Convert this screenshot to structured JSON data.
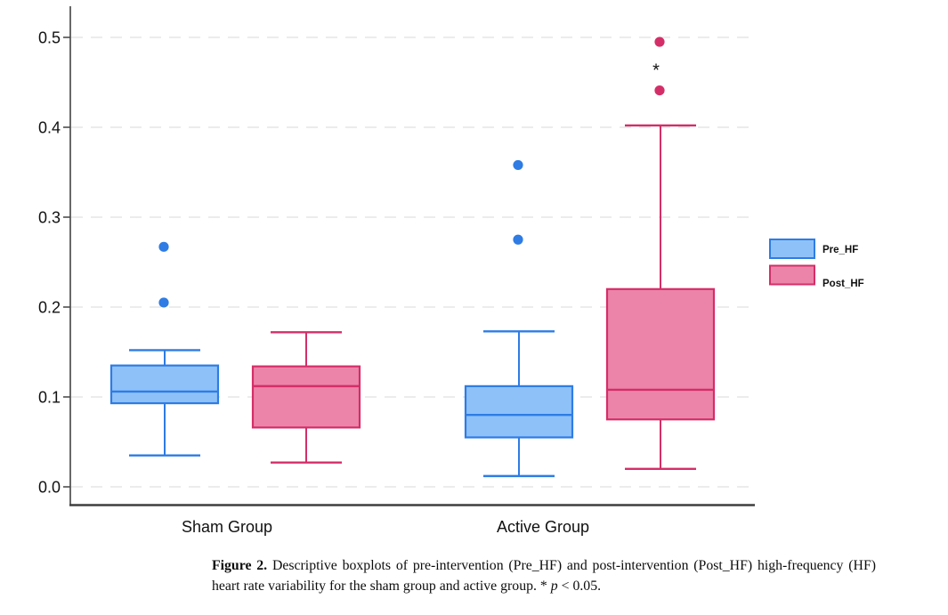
{
  "chart_data": {
    "type": "boxplot",
    "title": "",
    "xlabel": "",
    "ylabel": "",
    "groups": [
      "Sham Group",
      "Active Group"
    ],
    "y_axis": {
      "ticks": [
        "0.0",
        "0.1",
        "0.2",
        "0.3",
        "0.4",
        "0.5"
      ],
      "range": [
        -0.021,
        0.535
      ],
      "grid": "dashed-horizontal"
    },
    "legend_position": "right-middle",
    "colors": {
      "axis": "#4d4d4d",
      "bottom_axis": "#3f3f3f",
      "grid": "#e9e9e9",
      "text": "#111111",
      "background": "#ffffff"
    },
    "series": [
      {
        "name": "Pre_HF",
        "fill": "#8FC1F9",
        "stroke": "#2E7CE4",
        "data": [
          {
            "group": "Sham Group",
            "whisker_low": 0.035,
            "q1": 0.093,
            "median": 0.106,
            "q3": 0.135,
            "whisker_high": 0.152,
            "outliers": [
              0.205,
              0.267
            ]
          },
          {
            "group": "Active Group",
            "whisker_low": 0.012,
            "q1": 0.055,
            "median": 0.08,
            "q3": 0.112,
            "whisker_high": 0.173,
            "outliers": [
              0.275,
              0.358
            ]
          }
        ]
      },
      {
        "name": "Post_HF",
        "fill": "#EC84A9",
        "stroke": "#D42E68",
        "data": [
          {
            "group": "Sham Group",
            "whisker_low": 0.027,
            "q1": 0.066,
            "median": 0.112,
            "q3": 0.134,
            "whisker_high": 0.172,
            "outliers": []
          },
          {
            "group": "Active Group",
            "whisker_low": 0.02,
            "q1": 0.075,
            "median": 0.108,
            "q3": 0.22,
            "whisker_high": 0.402,
            "outliers": [
              0.441,
              0.495
            ]
          }
        ]
      }
    ],
    "significance": {
      "symbol": "*",
      "group": "Active Group",
      "series": "Post_HF",
      "y_value": 0.468
    }
  },
  "caption": {
    "label": "Figure 2.",
    "body": " Descriptive boxplots of pre-intervention (Pre_HF) and post-intervention (Post_HF) high-frequency (HF) heart rate variability for the sham group and active group. * ",
    "p_symbol": "p",
    "p_condition": " < 0.05."
  }
}
